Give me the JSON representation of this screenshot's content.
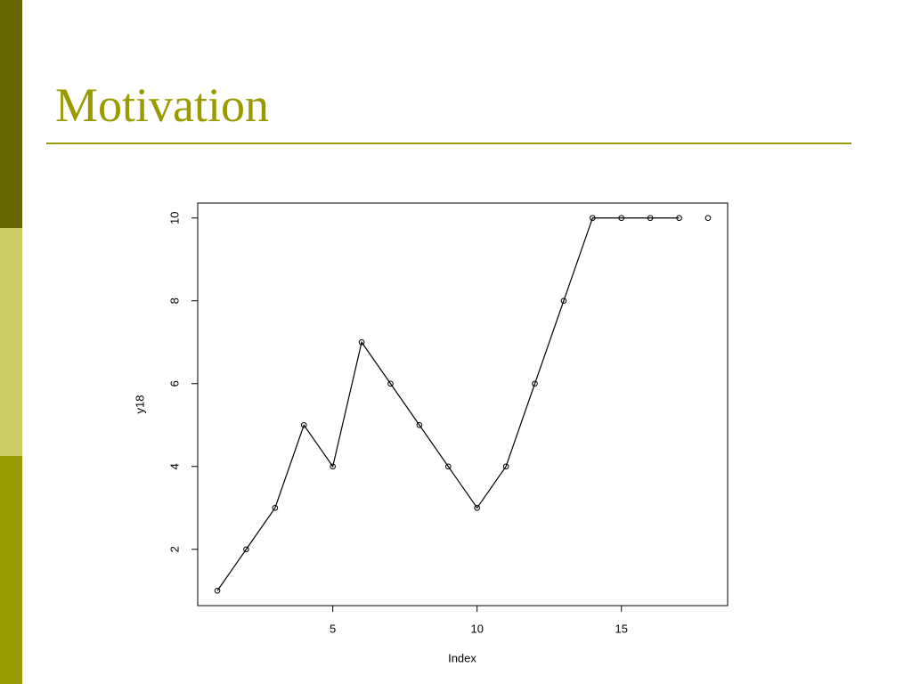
{
  "chart_data": {
    "type": "line",
    "title": "Motivation",
    "x_label": "Index",
    "y_label": "y18",
    "x": [
      1,
      2,
      3,
      4,
      5,
      6,
      7,
      8,
      9,
      10,
      11,
      12,
      13,
      14,
      15,
      16,
      17,
      18
    ],
    "series": [
      {
        "style": "points",
        "color": "#000000",
        "values": [
          1,
          2,
          3,
          5,
          4,
          7,
          6,
          5,
          4,
          3,
          4,
          6,
          8,
          10,
          10,
          10,
          10,
          10
        ]
      },
      {
        "style": "line",
        "color": "#000000",
        "values": [
          1,
          2,
          3,
          5,
          4,
          7,
          6,
          5,
          4,
          3,
          4,
          6,
          8,
          10,
          10,
          10,
          10,
          null
        ]
      }
    ],
    "xlim": [
      0.32,
      18.68
    ],
    "ylim": [
      0.64,
      10.36
    ],
    "xticks": [
      5,
      10,
      15
    ],
    "yticks": [
      2,
      4,
      6,
      8,
      10
    ],
    "grid": false
  }
}
